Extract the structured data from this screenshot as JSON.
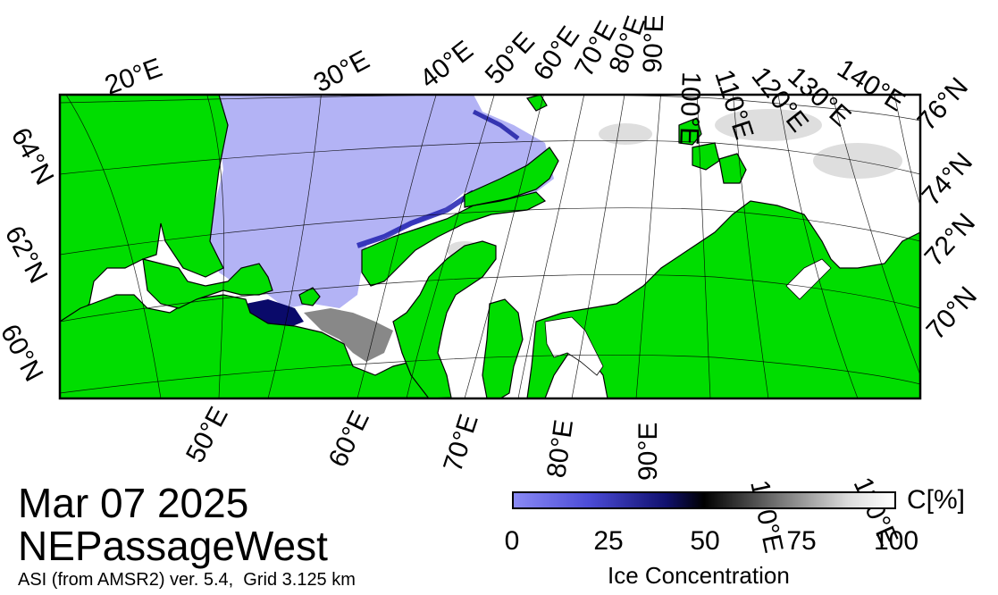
{
  "date": "Mar 07 2025",
  "region": "NEPassageWest",
  "product": "ASI (from AMSR2) ver. 5.4,  Grid 3.125 km",
  "colorbar": {
    "unit": "C[%]",
    "ticks": [
      "0",
      "25",
      "50",
      "75",
      "100"
    ],
    "title": "Ice Concentration",
    "colors": [
      "#8a8af5",
      "#10106e",
      "#000000",
      "#777777",
      "#ffffff"
    ]
  },
  "map": {
    "land_color": "#00dd00",
    "open_water_color": "#b3b3f5",
    "sea_ice_color": "#ffffff",
    "top_longitude_labels": [
      "20°E",
      "30°E",
      "40°E",
      "50°E",
      "60°E",
      "70°E",
      "80°E",
      "90°E",
      "100°E",
      "110°E",
      "120°E",
      "130°E",
      "140°E"
    ],
    "bottom_longitude_labels": [
      "50°E",
      "60°E",
      "70°E",
      "80°E",
      "90°E",
      "100°E",
      "110°E"
    ],
    "left_latitude_labels": [
      "64°N",
      "62°N",
      "60°N"
    ],
    "right_latitude_labels": [
      "76°N",
      "74°N",
      "72°N",
      "70°N"
    ]
  }
}
